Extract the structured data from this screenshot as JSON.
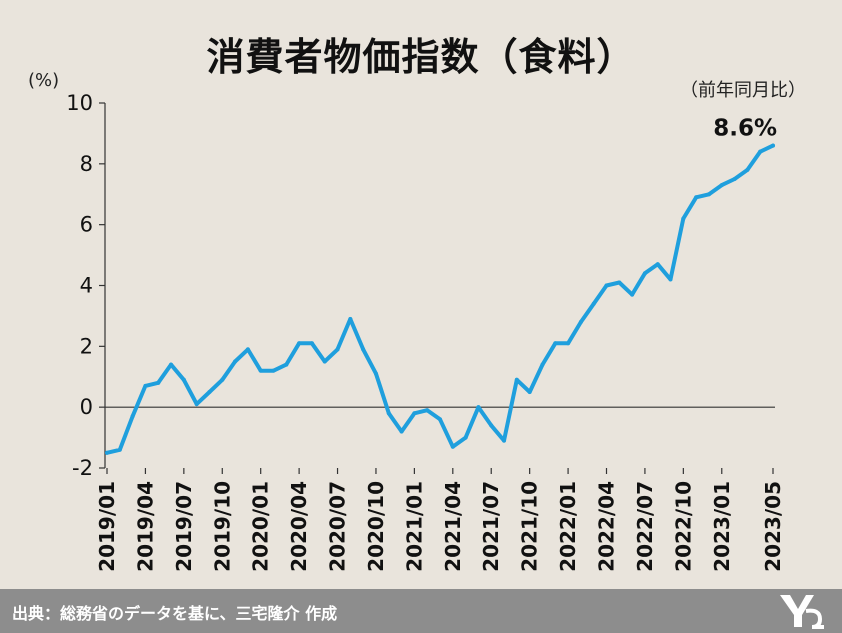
{
  "title": "消費者物価指数（食料）",
  "unit_label": "(%)",
  "note": "（前年同月比）",
  "last_value_label": "8.6%",
  "footer": "出典：総務省のデータを基に、三宅隆介 作成",
  "colors": {
    "line": "#1f9fdd",
    "background": "#e9e4dc",
    "footer_bg": "#8d8d8d"
  },
  "chart_data": {
    "type": "line",
    "title": "消費者物価指数（食料）",
    "ylabel": "(%)",
    "ylim": [
      -2,
      10
    ],
    "yticks": [
      10,
      8,
      6,
      4,
      2,
      0,
      -2
    ],
    "grid": false,
    "x": [
      "2019/01",
      "2019/02",
      "2019/03",
      "2019/04",
      "2019/05",
      "2019/06",
      "2019/07",
      "2019/08",
      "2019/09",
      "2019/10",
      "2019/11",
      "2019/12",
      "2020/01",
      "2020/02",
      "2020/03",
      "2020/04",
      "2020/05",
      "2020/06",
      "2020/07",
      "2020/08",
      "2020/09",
      "2020/10",
      "2020/11",
      "2020/12",
      "2021/01",
      "2021/02",
      "2021/03",
      "2021/04",
      "2021/05",
      "2021/06",
      "2021/07",
      "2021/08",
      "2021/09",
      "2021/10",
      "2021/11",
      "2021/12",
      "2022/01",
      "2022/02",
      "2022/03",
      "2022/04",
      "2022/05",
      "2022/06",
      "2022/07",
      "2022/08",
      "2022/09",
      "2022/10",
      "2022/11",
      "2022/12",
      "2023/01",
      "2023/02",
      "2023/03",
      "2023/04",
      "2023/05"
    ],
    "xticklabels": [
      "2019/01",
      "2019/04",
      "2019/07",
      "2019/10",
      "2020/01",
      "2020/04",
      "2020/07",
      "2020/10",
      "2021/01",
      "2021/04",
      "2021/07",
      "2021/10",
      "2022/01",
      "2022/04",
      "2022/07",
      "2022/10",
      "2023/01",
      "2023/05"
    ],
    "values": [
      -1.5,
      -1.4,
      -0.3,
      0.7,
      0.8,
      1.4,
      0.9,
      0.1,
      0.5,
      0.9,
      1.5,
      1.9,
      1.2,
      1.2,
      1.4,
      2.1,
      2.1,
      1.5,
      1.9,
      2.9,
      1.9,
      1.1,
      -0.2,
      -0.8,
      -0.2,
      -0.1,
      -0.4,
      -1.3,
      -1.0,
      0.0,
      -0.6,
      -1.1,
      0.9,
      0.5,
      1.4,
      2.1,
      2.1,
      2.8,
      3.4,
      4.0,
      4.1,
      3.7,
      4.4,
      4.7,
      4.2,
      6.2,
      6.9,
      7.0,
      7.3,
      7.5,
      7.8,
      8.4,
      8.6
    ]
  }
}
